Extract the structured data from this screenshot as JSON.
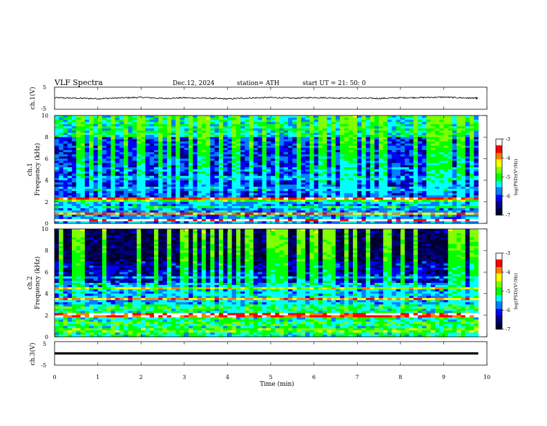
{
  "header": {
    "title": "VLF  Spectra",
    "date": "Dec.12, 2024",
    "station": "station= ATH",
    "start": "start  UT  =    21: 50: 0"
  },
  "colors": {
    "colormap": [
      "#000030",
      "#000080",
      "#0000ff",
      "#0080ff",
      "#00ffff",
      "#00ff00",
      "#80ff00",
      "#ffff00",
      "#ff8000",
      "#ff0000",
      "#ffffff"
    ],
    "trace": "#000000"
  },
  "chart_data": [
    {
      "type": "line",
      "name": "ch1",
      "ylabel": "ch.1(V)",
      "ylim": [
        -5,
        5
      ],
      "y_ticks": [
        "5",
        "-5"
      ],
      "xlim": [
        0,
        10
      ],
      "x": [
        0,
        0.5,
        1,
        1.5,
        2,
        2.5,
        3,
        3.5,
        4,
        4.5,
        5,
        5.5,
        6,
        6.5,
        7,
        7.5,
        8,
        8.5,
        9,
        9.5,
        9.8
      ],
      "y": [
        0.2,
        0.0,
        -0.2,
        0.1,
        0.4,
        -0.1,
        0.2,
        0.0,
        -0.3,
        0.1,
        0.3,
        0.0,
        0.3,
        0.1,
        0.0,
        -0.1,
        0.2,
        0.3,
        0.5,
        0.1,
        0.0
      ]
    },
    {
      "type": "heatmap",
      "name": "ch1-spectrogram",
      "ylabel_top": "ch.1",
      "ylabel": "Frequency  (kHz)",
      "ylim": [
        0,
        10
      ],
      "y_ticks": [
        "0",
        "2",
        "4",
        "6",
        "8",
        "10"
      ],
      "xlim": [
        0,
        10
      ],
      "colorbar": {
        "label": "log(PSD)(V²/Hz)",
        "range": [
          -7,
          -3
        ],
        "ticks": [
          "-3",
          "-4",
          "-5",
          "-6",
          "-7"
        ]
      },
      "bands_khz": [
        {
          "f": 0.3,
          "level": -3.2
        },
        {
          "f": 0.9,
          "level": -4.0
        },
        {
          "f": 1.5,
          "level": -5.2
        },
        {
          "f": 2.1,
          "level": -4.8
        },
        {
          "f": 2.3,
          "level": -3.6
        },
        {
          "f": 3.2,
          "level": -5.6
        },
        {
          "f": 4.2,
          "level": -5.6
        },
        {
          "f": 5.0,
          "level": -5.8
        },
        {
          "f": 5.8,
          "level": -6.0
        }
      ],
      "background_levels": [
        {
          "f_from": 0,
          "f_to": 2,
          "level": -5.6
        },
        {
          "f_from": 2,
          "f_to": 5.5,
          "level": -6.1
        },
        {
          "f_from": 5.5,
          "f_to": 8,
          "level": -6.0
        },
        {
          "f_from": 8,
          "f_to": 10,
          "level": -5.3
        }
      ]
    },
    {
      "type": "heatmap",
      "name": "ch2-spectrogram",
      "ylabel_top": "ch.2",
      "ylabel": "Frequency  (kHz)",
      "ylim": [
        0,
        10
      ],
      "y_ticks": [
        "0",
        "2",
        "4",
        "6",
        "8",
        "10"
      ],
      "xlim": [
        0,
        10
      ],
      "colorbar": {
        "label": "log(PSD)(V²/Hz)",
        "range": [
          -7,
          -3
        ],
        "ticks": [
          "-3",
          "-4",
          "-5",
          "-6",
          "-7"
        ]
      },
      "bands_khz": [
        {
          "f": 0.6,
          "level": -4.8
        },
        {
          "f": 1.2,
          "level": -5.0
        },
        {
          "f": 1.9,
          "level": -3.6
        },
        {
          "f": 2.1,
          "level": -3.4
        },
        {
          "f": 2.7,
          "level": -5.0
        },
        {
          "f": 3.5,
          "level": -4.0
        },
        {
          "f": 4.5,
          "level": -4.4
        },
        {
          "f": 5.5,
          "level": -5.6
        },
        {
          "f": 6.5,
          "level": -6.2
        }
      ],
      "background_levels": [
        {
          "f_from": 0,
          "f_to": 3,
          "level": -5.2
        },
        {
          "f_from": 3,
          "f_to": 5,
          "level": -5.6
        },
        {
          "f_from": 5,
          "f_to": 7,
          "level": -6.3
        },
        {
          "f_from": 7,
          "f_to": 10,
          "level": -6.7
        }
      ]
    },
    {
      "type": "line",
      "name": "ch3",
      "ylabel": "ch.3(V)",
      "ylim": [
        -5,
        5
      ],
      "y_ticks": [
        "5",
        "-5"
      ],
      "xlim": [
        0,
        10
      ],
      "x": [
        0,
        9.8
      ],
      "y": [
        0,
        0
      ]
    }
  ],
  "xaxis": {
    "label": "Time  (min)",
    "ticks": [
      "0",
      "1",
      "2",
      "3",
      "4",
      "5",
      "6",
      "7",
      "8",
      "9",
      "10"
    ]
  }
}
